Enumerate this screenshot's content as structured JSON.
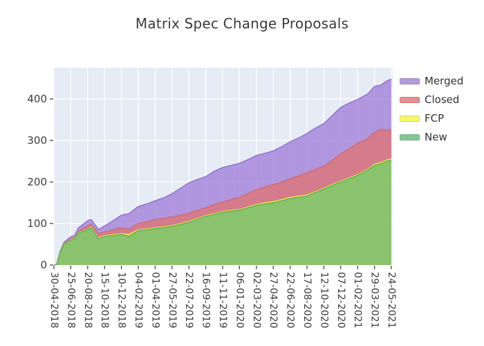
{
  "chart_data": {
    "type": "area",
    "stacked": true,
    "title": "Matrix Spec Change Proposals",
    "xlabel": "",
    "ylabel": "",
    "grid": true,
    "legend_position": "right",
    "background_plot": "#e6ecf5",
    "background_figure": "#ffffff",
    "grid_color": "#ffffff",
    "y_ticks": [
      0,
      100,
      200,
      300,
      400
    ],
    "ylim": [
      0,
      475
    ],
    "x_tick_labels": [
      "30-04-2018",
      "25-06-2018",
      "20-08-2018",
      "15-10-2018",
      "10-12-2018",
      "04-02-2019",
      "01-04-2019",
      "27-05-2019",
      "22-07-2019",
      "16-09-2019",
      "11-11-2019",
      "06-01-2020",
      "02-03-2020",
      "27-04-2020",
      "22-06-2020",
      "17-08-2020",
      "12-10-2020",
      "07-12-2020",
      "01-02-2021",
      "29-03-2021",
      "24-05-2021"
    ],
    "series_meta": [
      {
        "key": "merged",
        "name": "Merged",
        "fill": "#9c7ad5",
        "stroke": "#8a68cc",
        "legend_color": "#b39bdc"
      },
      {
        "key": "closed",
        "name": "Closed",
        "fill": "#e07270",
        "stroke": "#d06a6a",
        "legend_color": "#e59090"
      },
      {
        "key": "fcp",
        "name": "FCP",
        "fill": "#fbf941",
        "stroke": "#e8e23e",
        "legend_color": "#f8f66d"
      },
      {
        "key": "new",
        "name": "New",
        "fill": "#68ba75",
        "stroke": "#55ab64",
        "legend_color": "#85c794"
      }
    ],
    "stack_order_bottom_to_top": [
      "new",
      "fcp",
      "closed",
      "merged"
    ],
    "points_format": [
      "t_fraction_of_x_axis",
      "new",
      "fcp",
      "closed",
      "merged"
    ],
    "points": [
      [
        0.0,
        0,
        0,
        0,
        0
      ],
      [
        0.008,
        1,
        0,
        1,
        0
      ],
      [
        0.018,
        30,
        1,
        1,
        1
      ],
      [
        0.03,
        50,
        1,
        2,
        2
      ],
      [
        0.05,
        60,
        1,
        2,
        5
      ],
      [
        0.062,
        63,
        1,
        2,
        6
      ],
      [
        0.072,
        77,
        1,
        3,
        8
      ],
      [
        0.1,
        85,
        1,
        8,
        13
      ],
      [
        0.11,
        90,
        2,
        7,
        11
      ],
      [
        0.132,
        63,
        2,
        11,
        10
      ],
      [
        0.15,
        69,
        2,
        9,
        14
      ],
      [
        0.175,
        71,
        2,
        12,
        22
      ],
      [
        0.2,
        74,
        2,
        14,
        30
      ],
      [
        0.222,
        69,
        5,
        12,
        38
      ],
      [
        0.25,
        83,
        2,
        15,
        41
      ],
      [
        0.275,
        85,
        2,
        17,
        43
      ],
      [
        0.3,
        88,
        2,
        20,
        45
      ],
      [
        0.325,
        90,
        2,
        20,
        50
      ],
      [
        0.35,
        93,
        2,
        21,
        56
      ],
      [
        0.375,
        98,
        2,
        20,
        65
      ],
      [
        0.4,
        103,
        2,
        20,
        73
      ],
      [
        0.425,
        110,
        2,
        20,
        74
      ],
      [
        0.45,
        117,
        2,
        19,
        75
      ],
      [
        0.475,
        122,
        2,
        22,
        80
      ],
      [
        0.5,
        127,
        2,
        23,
        83
      ],
      [
        0.525,
        130,
        2,
        26,
        82
      ],
      [
        0.55,
        132,
        2,
        29,
        82
      ],
      [
        0.575,
        138,
        2,
        32,
        82
      ],
      [
        0.6,
        144,
        2,
        36,
        82
      ],
      [
        0.625,
        147,
        3,
        38,
        81
      ],
      [
        0.65,
        150,
        3,
        41,
        81
      ],
      [
        0.675,
        155,
        3,
        42,
        85
      ],
      [
        0.7,
        160,
        3,
        45,
        89
      ],
      [
        0.725,
        163,
        3,
        49,
        91
      ],
      [
        0.75,
        166,
        3,
        54,
        94
      ],
      [
        0.775,
        175,
        2,
        53,
        100
      ],
      [
        0.8,
        183,
        2,
        53,
        103
      ],
      [
        0.825,
        192,
        2,
        58,
        108
      ],
      [
        0.85,
        200,
        2,
        66,
        112
      ],
      [
        0.875,
        208,
        2,
        70,
        110
      ],
      [
        0.9,
        216,
        2,
        75,
        106
      ],
      [
        0.93,
        228,
        2,
        75,
        107
      ],
      [
        0.95,
        240,
        3,
        77,
        110
      ],
      [
        0.97,
        244,
        3,
        80,
        107
      ],
      [
        0.985,
        250,
        3,
        72,
        118
      ],
      [
        1.0,
        253,
        3,
        71,
        121
      ]
    ]
  }
}
